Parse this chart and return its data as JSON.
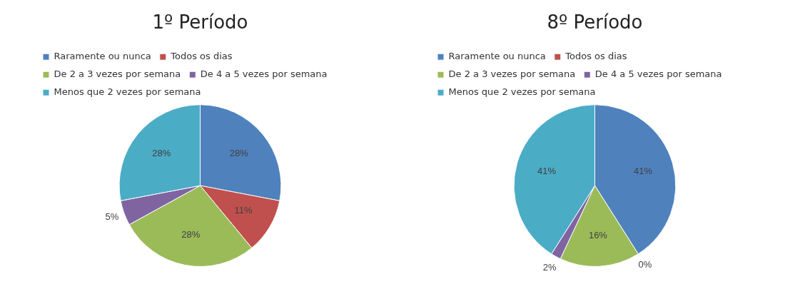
{
  "chart_data": [
    {
      "type": "pie",
      "title": "1º Período",
      "categories": [
        "Raramente ou nunca",
        "Todos os dias",
        "De 2 a 3 vezes por semana",
        "De 4 a 5 vezes por semana",
        "Menos que 2 vezes por semana"
      ],
      "values": [
        28,
        11,
        28,
        5,
        28
      ],
      "value_labels": [
        "28%",
        "11%",
        "28%",
        "5%",
        "28%"
      ],
      "colors": [
        "#4f81bd",
        "#c0504d",
        "#9bbb59",
        "#8064a2",
        "#4bacc6"
      ],
      "legend": "top"
    },
    {
      "type": "pie",
      "title": "8º Período",
      "categories": [
        "Raramente ou nunca",
        "Todos os dias",
        "De 2 a 3 vezes por semana",
        "De 4 a 5 vezes por semana",
        "Menos que 2 vezes por semana"
      ],
      "values": [
        41,
        0,
        16,
        2,
        41
      ],
      "value_labels": [
        "41%",
        "0%",
        "16%",
        "2%",
        "41%"
      ],
      "colors": [
        "#4f81bd",
        "#c0504d",
        "#9bbb59",
        "#8064a2",
        "#4bacc6"
      ],
      "legend": "top"
    }
  ]
}
